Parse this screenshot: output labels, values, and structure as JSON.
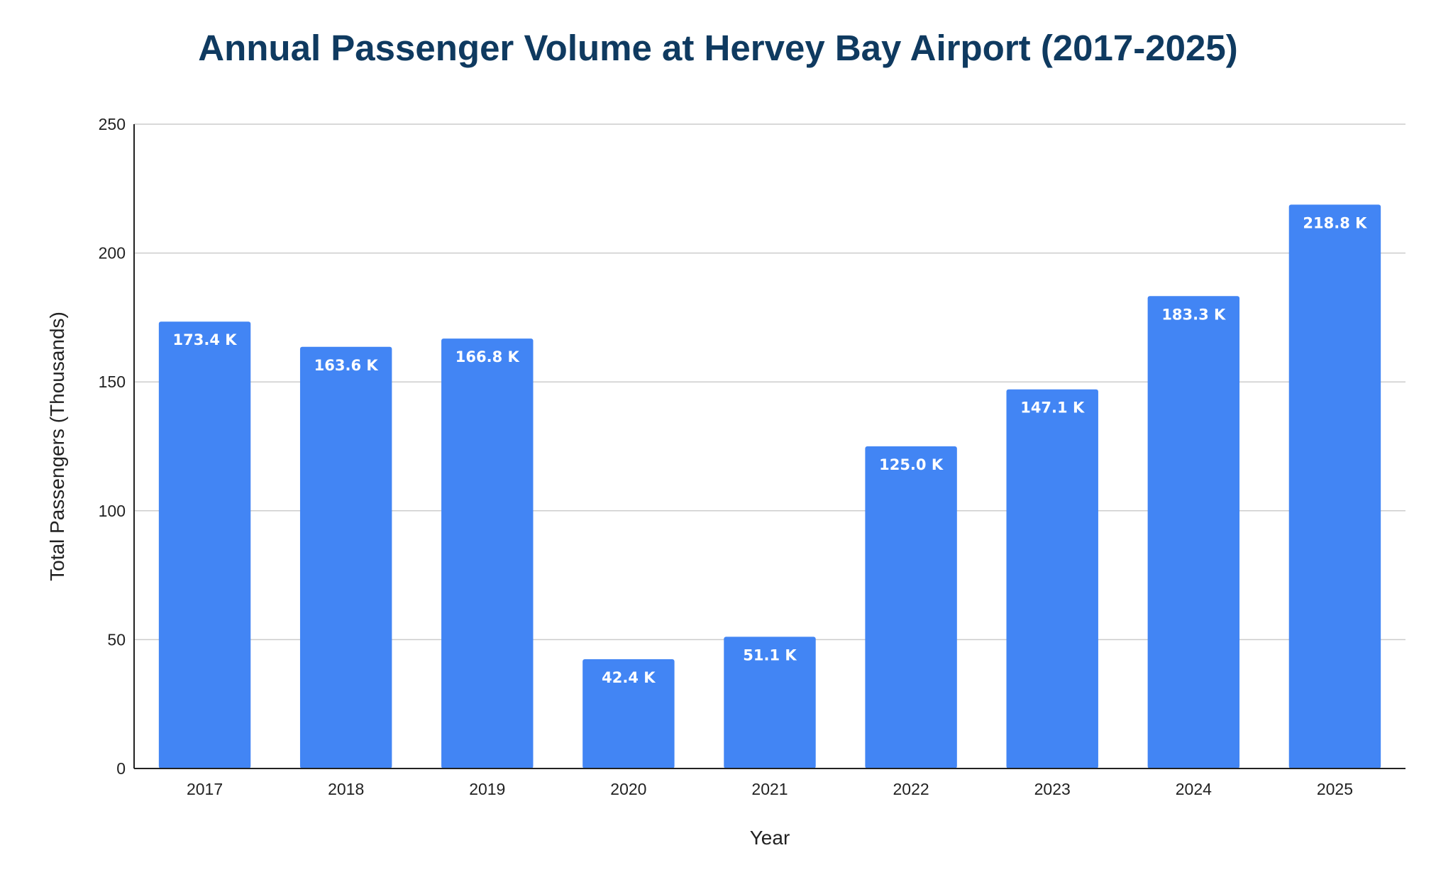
{
  "chart_data": {
    "type": "bar",
    "title": "Annual Passenger Volume at Hervey Bay Airport (2017-2025)",
    "xlabel": "Year",
    "ylabel": "Total Passengers (Thousands)",
    "categories": [
      "2017",
      "2018",
      "2019",
      "2020",
      "2021",
      "2022",
      "2023",
      "2024",
      "2025"
    ],
    "values": [
      173.4,
      163.6,
      166.8,
      42.4,
      51.1,
      125.0,
      147.1,
      183.3,
      218.8
    ],
    "data_labels": [
      "173.4 K",
      "163.6 K",
      "166.8 K",
      "42.4 K",
      "51.1 K",
      "125.0 K",
      "147.1 K",
      "183.3 K",
      "218.8 K"
    ],
    "ylim": [
      0,
      250
    ],
    "yticks": [
      0,
      50,
      100,
      150,
      200,
      250
    ],
    "grid": true,
    "legend": "none",
    "bar_color": "#4285f4",
    "title_color": "#0f3a60"
  }
}
